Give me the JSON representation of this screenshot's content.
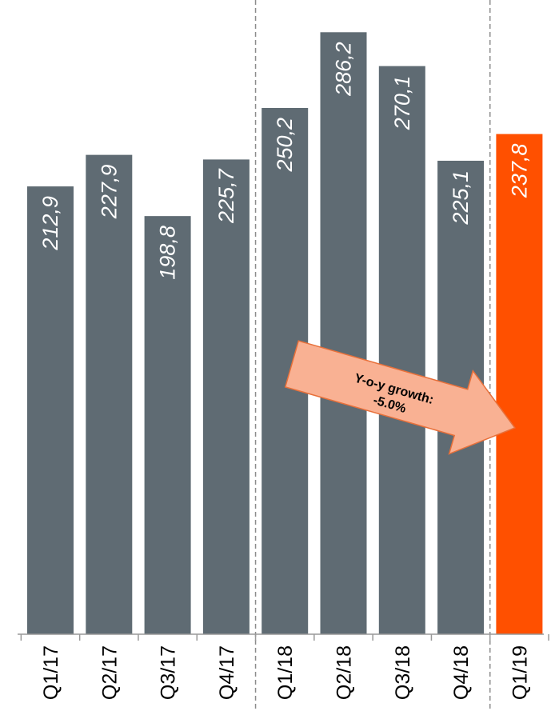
{
  "chart_data": {
    "type": "bar",
    "categories": [
      "Q1/17",
      "Q2/17",
      "Q3/17",
      "Q4/17",
      "Q1/18",
      "Q2/18",
      "Q3/18",
      "Q4/18",
      "Q1/19"
    ],
    "values": [
      212.9,
      227.9,
      198.8,
      225.7,
      250.2,
      286.2,
      270.1,
      225.1,
      237.8
    ],
    "value_labels": [
      "212,9",
      "227,9",
      "198,8",
      "225,7",
      "250,2",
      "286,2",
      "270,1",
      "225,1",
      "237,8"
    ],
    "title": "",
    "xlabel": "",
    "ylabel": "",
    "ylim": [
      0,
      300
    ],
    "grid": false,
    "highlight_index": 8,
    "year_separators_after": [
      3,
      7
    ],
    "colors": {
      "bar": "#5f6b73",
      "highlight": "#ff5000",
      "callout_fill": "#f9b193",
      "callout_stroke": "#e8703a",
      "separator": "#8c8c8c",
      "axis": "#999999"
    },
    "annotation": {
      "line1": "Y-o-y growth:",
      "line2": "-5.0%"
    }
  }
}
